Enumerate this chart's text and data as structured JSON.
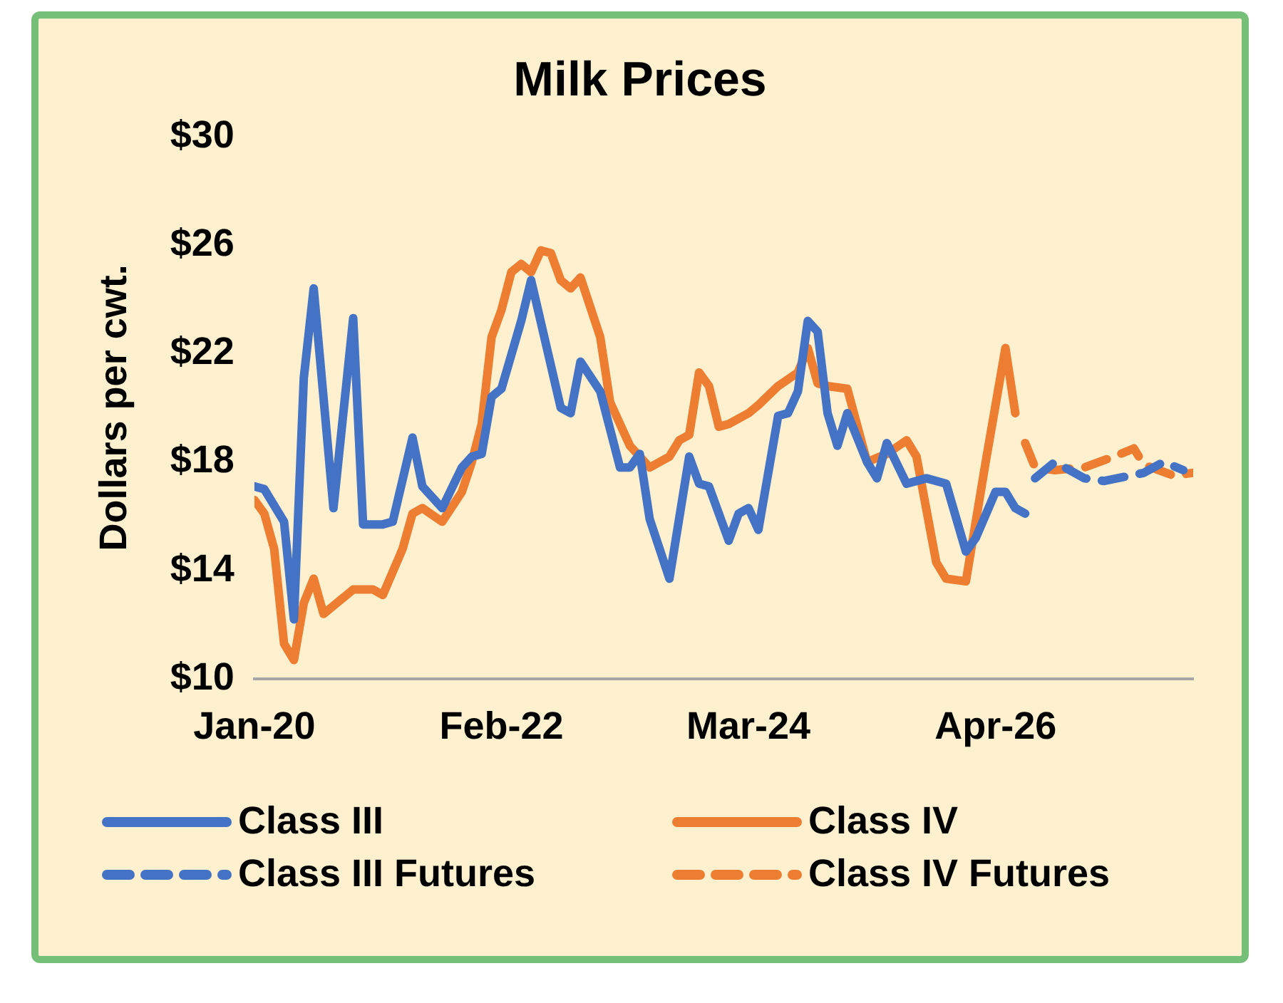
{
  "chart_data": {
    "type": "line",
    "title": "Milk Prices",
    "ylabel": "Dollars per cwt.",
    "ylim": [
      10,
      30
    ],
    "yticks": [
      {
        "value": 10,
        "label": "$10"
      },
      {
        "value": 14,
        "label": "$14"
      },
      {
        "value": 18,
        "label": "$18"
      },
      {
        "value": 22,
        "label": "$22"
      },
      {
        "value": 26,
        "label": "$26"
      },
      {
        "value": 30,
        "label": "$30"
      }
    ],
    "xlim": [
      "2020-01",
      "2027-12"
    ],
    "xticks": [
      {
        "value": "2020-01",
        "label": "Jan-20"
      },
      {
        "value": "2022-02",
        "label": "Feb-22"
      },
      {
        "value": "2024-03",
        "label": "Mar-24"
      },
      {
        "value": "2026-04",
        "label": "Apr-26"
      }
    ],
    "grid": false,
    "legend": "bottom",
    "marker": "none",
    "series": [
      {
        "name": "Class III",
        "color": "#4472c4",
        "line_style": "solid",
        "x": [
          "2020-01",
          "2020-02",
          "2020-04",
          "2020-05",
          "2020-06",
          "2020-07",
          "2020-09",
          "2020-11",
          "2020-12",
          "2021-02",
          "2021-03",
          "2021-05",
          "2021-06",
          "2021-08",
          "2021-10",
          "2021-11",
          "2021-12",
          "2022-01",
          "2022-02",
          "2022-04",
          "2022-05",
          "2022-08",
          "2022-09",
          "2022-10",
          "2022-12",
          "2023-02",
          "2023-03",
          "2023-04",
          "2023-05",
          "2023-07",
          "2023-09",
          "2023-10",
          "2023-11",
          "2024-01",
          "2024-02",
          "2024-03",
          "2024-04",
          "2024-06",
          "2024-07",
          "2024-08",
          "2024-09",
          "2024-10",
          "2024-11",
          "2024-12",
          "2025-01",
          "2025-03",
          "2025-04",
          "2025-05",
          "2025-07",
          "2025-09",
          "2025-11",
          "2026-01",
          "2026-02",
          "2026-04",
          "2026-05",
          "2026-06",
          "2026-07"
        ],
        "values": [
          17.1,
          17.0,
          15.8,
          12.2,
          21.1,
          24.4,
          16.3,
          23.3,
          15.7,
          15.7,
          15.8,
          18.9,
          17.1,
          16.3,
          17.8,
          18.2,
          18.3,
          20.4,
          20.7,
          23.2,
          24.7,
          20.0,
          19.8,
          21.7,
          20.6,
          17.8,
          17.8,
          18.3,
          15.9,
          13.7,
          18.2,
          17.2,
          17.1,
          15.1,
          16.1,
          16.3,
          15.5,
          19.7,
          19.8,
          20.6,
          23.2,
          22.8,
          19.8,
          18.6,
          19.8,
          18.0,
          17.4,
          18.7,
          17.2,
          17.4,
          17.2,
          14.7,
          15.2,
          16.9,
          16.9,
          16.3,
          16.1
        ]
      },
      {
        "name": "Class IV",
        "color": "#ed7d31",
        "line_style": "solid",
        "x": [
          "2020-01",
          "2020-02",
          "2020-03",
          "2020-04",
          "2020-05",
          "2020-06",
          "2020-07",
          "2020-08",
          "2020-09",
          "2020-11",
          "2021-01",
          "2021-02",
          "2021-04",
          "2021-05",
          "2021-06",
          "2021-08",
          "2021-10",
          "2021-11",
          "2021-12",
          "2022-01",
          "2022-02",
          "2022-03",
          "2022-04",
          "2022-05",
          "2022-06",
          "2022-07",
          "2022-08",
          "2022-09",
          "2022-10",
          "2022-12",
          "2023-01",
          "2023-03",
          "2023-05",
          "2023-07",
          "2023-08",
          "2023-09",
          "2023-10",
          "2023-11",
          "2023-12",
          "2024-01",
          "2024-03",
          "2024-04",
          "2024-06",
          "2024-08",
          "2024-09",
          "2024-10",
          "2024-11",
          "2025-01",
          "2025-03",
          "2025-05",
          "2025-07",
          "2025-08",
          "2025-10",
          "2025-11",
          "2026-01",
          "2026-03",
          "2026-05",
          "2026-06"
        ],
        "values": [
          16.6,
          16.1,
          14.8,
          11.3,
          10.7,
          12.8,
          13.7,
          12.4,
          12.7,
          13.3,
          13.3,
          13.1,
          14.8,
          16.1,
          16.3,
          15.8,
          16.9,
          18.0,
          19.4,
          22.6,
          23.6,
          25.0,
          25.3,
          25.0,
          25.8,
          25.7,
          24.7,
          24.4,
          24.8,
          22.6,
          20.2,
          18.6,
          17.8,
          18.2,
          18.8,
          19.0,
          21.3,
          20.8,
          19.3,
          19.4,
          19.8,
          20.1,
          20.8,
          21.3,
          22.2,
          20.9,
          20.8,
          20.7,
          18.0,
          18.3,
          18.8,
          18.2,
          14.3,
          13.7,
          13.6,
          18.0,
          22.2,
          19.8
        ]
      },
      {
        "name": "Class III Futures",
        "color": "#4472c4",
        "line_style": "dashed",
        "x": [
          "2026-08",
          "2026-10",
          "2027-01",
          "2027-03",
          "2027-07",
          "2027-09",
          "2027-11"
        ],
        "values": [
          17.4,
          18.0,
          17.4,
          17.3,
          17.6,
          18.0,
          17.7
        ]
      },
      {
        "name": "Class IV Futures",
        "color": "#ed7d31",
        "line_style": "dashed",
        "x": [
          "2026-07",
          "2026-08",
          "2026-10",
          "2027-01",
          "2027-04",
          "2027-06",
          "2027-07",
          "2027-10",
          "2027-12"
        ],
        "values": [
          18.7,
          17.8,
          17.7,
          17.8,
          18.2,
          18.5,
          17.9,
          17.5,
          17.6
        ]
      }
    ]
  }
}
